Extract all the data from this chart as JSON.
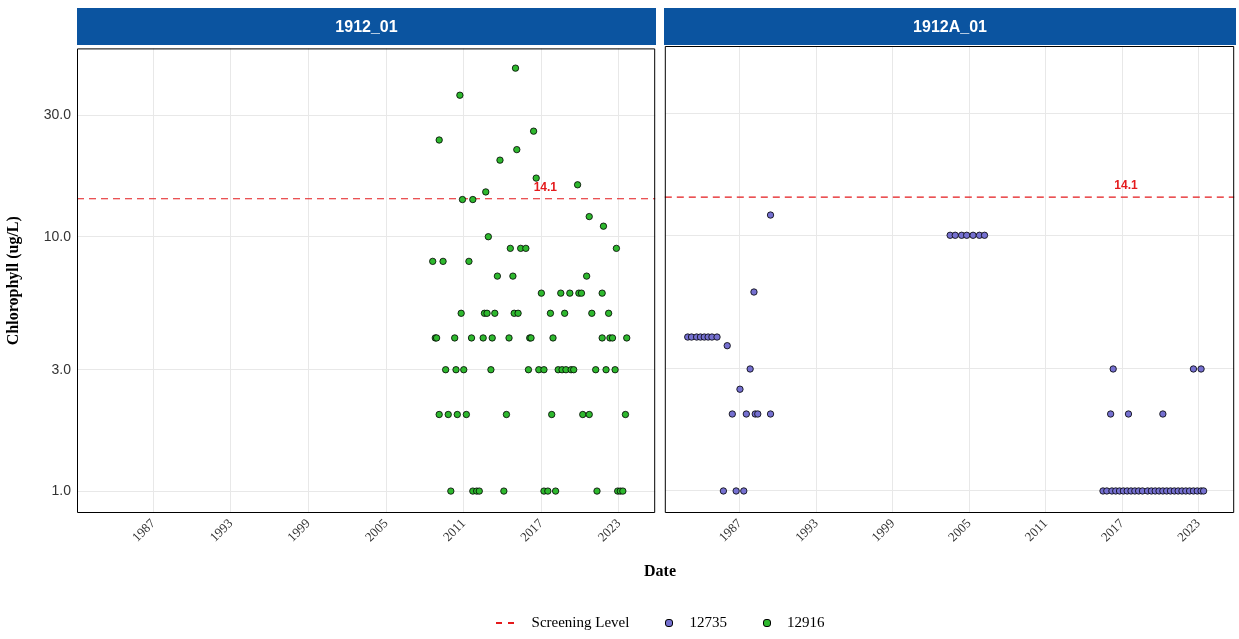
{
  "chart_data": [
    {
      "type": "scatter",
      "title": "1912_01",
      "xlabel": "Date",
      "ylabel": "Chlorophyll (ug/L)",
      "log": "y",
      "grid": true,
      "legend": "bottom",
      "marker": "circle",
      "xlim": [
        1981.1,
        2025.8
      ],
      "xticks": [
        1987,
        1993,
        1999,
        2005,
        2011,
        2017,
        2023
      ],
      "ylim": [
        0.82,
        55
      ],
      "yticks": [
        {
          "value": 1,
          "label": "1.0"
        },
        {
          "value": 3,
          "label": "3.0"
        },
        {
          "value": 10,
          "label": "10.0"
        },
        {
          "value": 30,
          "label": "30.0"
        }
      ],
      "ref_lines": [
        {
          "axis": "y",
          "value": 14.1,
          "label": "14.1",
          "color": "#e41a1c",
          "line_style": "dashed"
        }
      ],
      "annotations": [
        "Screening Level"
      ],
      "series": [
        {
          "name": "12916",
          "color": "#2eb82e",
          "x": [
            2015.0,
            2010.7,
            2016.4,
            2009.1,
            2015.1,
            2013.8,
            2016.6,
            2019.8,
            2012.7,
            2010.9,
            2011.7,
            2020.7,
            2021.8,
            2012.9,
            2014.6,
            2015.4,
            2015.8,
            2022.8,
            2008.6,
            2009.4,
            2011.4,
            2013.6,
            2014.8,
            2020.5,
            2017.0,
            2018.5,
            2019.2,
            2019.9,
            2020.1,
            2021.7,
            2010.8,
            2012.6,
            2012.8,
            2013.4,
            2014.9,
            2015.2,
            2017.7,
            2018.8,
            2020.9,
            2022.2,
            2008.8,
            2008.9,
            2010.3,
            2011.6,
            2012.5,
            2013.2,
            2014.5,
            2016.1,
            2016.2,
            2017.9,
            2021.7,
            2022.3,
            2022.5,
            2023.6,
            2009.6,
            2010.4,
            2011.0,
            2013.1,
            2016.0,
            2016.8,
            2017.2,
            2018.3,
            2018.6,
            2018.9,
            2019.3,
            2019.5,
            2021.2,
            2022.0,
            2022.7,
            2009.1,
            2009.8,
            2010.5,
            2011.2,
            2014.3,
            2017.8,
            2020.2,
            2020.7,
            2023.5,
            2010.0,
            2011.7,
            2012.0,
            2012.2,
            2014.1,
            2017.2,
            2017.5,
            2018.1,
            2021.3,
            2022.9,
            2023.1,
            2023.3
          ],
          "values": [
            46,
            36,
            26,
            24,
            22,
            20,
            17,
            16,
            15,
            14,
            14,
            12,
            11,
            10,
            9,
            9,
            9,
            9,
            8,
            8,
            8,
            7,
            7,
            7,
            6,
            6,
            6,
            6,
            6,
            6,
            5,
            5,
            5,
            5,
            5,
            5,
            5,
            5,
            5,
            5,
            4,
            4,
            4,
            4,
            4,
            4,
            4,
            4,
            4,
            4,
            4,
            4,
            4,
            4,
            3,
            3,
            3,
            3,
            3,
            3,
            3,
            3,
            3,
            3,
            3,
            3,
            3,
            3,
            3,
            2,
            2,
            2,
            2,
            2,
            2,
            2,
            2,
            2,
            1,
            1,
            1,
            1,
            1,
            1,
            1,
            1,
            1,
            1,
            1,
            1
          ]
        }
      ]
    },
    {
      "type": "scatter",
      "title": "1912A_01",
      "log": "y",
      "grid": true,
      "legend": "bottom",
      "marker": "circle",
      "tick_labels": "x",
      "xlim": [
        1981.1,
        2025.8
      ],
      "xticks": [
        1987,
        1993,
        1999,
        2005,
        2011,
        2017,
        2023
      ],
      "ylim": [
        0.82,
        55
      ],
      "yticks": [
        1,
        3,
        10,
        30
      ],
      "ref_lines": [
        {
          "axis": "y",
          "value": 14.1,
          "label": "14.1",
          "color": "#e41a1c",
          "line_style": "dashed"
        }
      ],
      "series": [
        {
          "name": "12735",
          "color": "#7570d0",
          "x": [
            1989.4,
            1988.1,
            1982.9,
            1983.2,
            1983.6,
            1983.9,
            1984.2,
            1984.5,
            1984.8,
            1985.2,
            1986.0,
            1987.8,
            2016.3,
            2022.6,
            2023.2,
            1987.0,
            1986.4,
            1987.5,
            1988.2,
            1988.4,
            1989.4,
            2016.1,
            2017.5,
            2020.2,
            1985.7,
            1986.7,
            1987.3,
            2015.5,
            2015.8,
            2016.2,
            2016.5,
            2016.8,
            2017.1,
            2017.4,
            2017.7,
            2018.0,
            2018.3,
            2018.6,
            2019.0,
            2019.3,
            2019.6,
            2019.9,
            2020.2,
            2020.5,
            2020.8,
            2021.1,
            2021.4,
            2021.7,
            2022.0,
            2022.3,
            2022.6,
            2022.9,
            2023.2,
            2023.4,
            2003.5,
            2003.9,
            2004.4,
            2004.8,
            2005.3,
            2005.8,
            2006.2
          ],
          "values": [
            12,
            6,
            4,
            4,
            4,
            4,
            4,
            4,
            4,
            4,
            3.7,
            3,
            3,
            3,
            3,
            2.5,
            2,
            2,
            2,
            2,
            2,
            2,
            2,
            2,
            1,
            1,
            1,
            1,
            1,
            1,
            1,
            1,
            1,
            1,
            1,
            1,
            1,
            1,
            1,
            1,
            1,
            1,
            1,
            1,
            1,
            1,
            1,
            1,
            1,
            1,
            1,
            1,
            1,
            1,
            10,
            10,
            10,
            10,
            10,
            10,
            10
          ]
        }
      ]
    }
  ]
}
